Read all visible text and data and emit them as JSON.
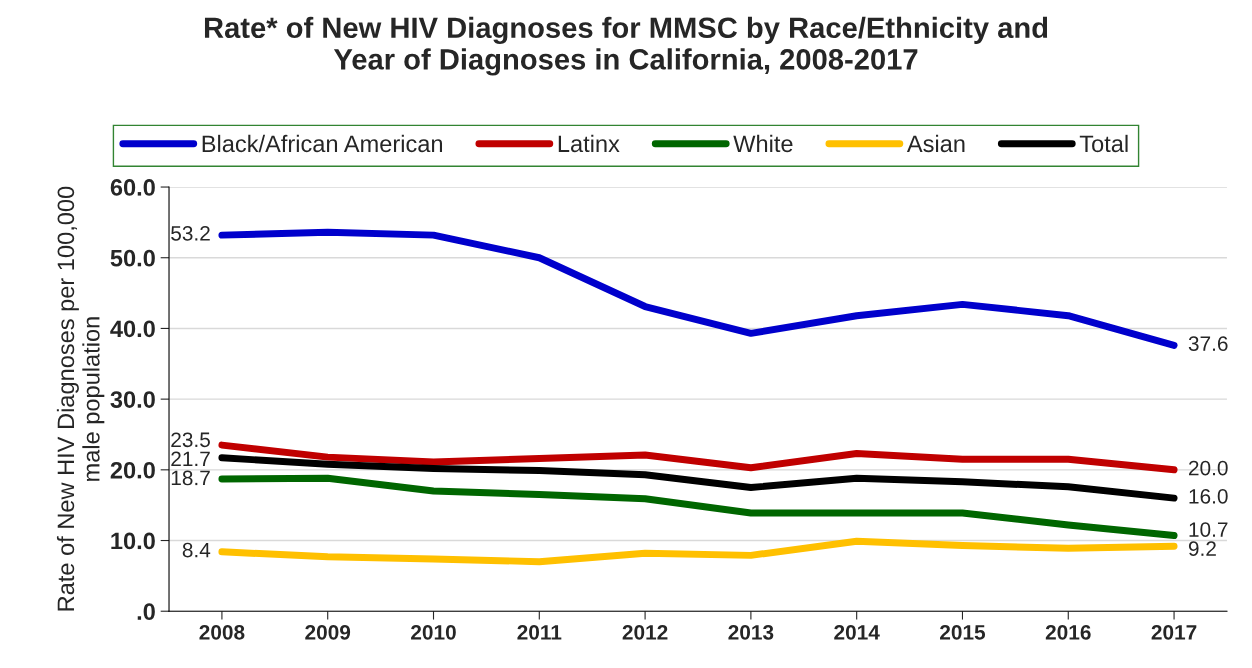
{
  "chart_data": {
    "type": "line",
    "title": "Rate* of New HIV Diagnoses for MMSC by Race/Ethnicity and\nYear of Diagnoses in California, 2008-2017",
    "ylabel": "Rate of New HIV Diagnoses per 100,000\nmale population",
    "categories": [
      "2008",
      "2009",
      "2010",
      "2011",
      "2012",
      "2013",
      "2014",
      "2015",
      "2016",
      "2017"
    ],
    "series": [
      {
        "name": "Black/African American",
        "color": "#0000cc",
        "values": [
          53.2,
          53.6,
          53.2,
          50.0,
          43.1,
          39.3,
          41.8,
          43.4,
          41.8,
          37.6
        ],
        "value_labels": [
          "53.2",
          null,
          null,
          null,
          null,
          null,
          null,
          null,
          null,
          "37.6"
        ]
      },
      {
        "name": "Latinx",
        "color": "#c00000",
        "values": [
          23.5,
          21.8,
          21.1,
          21.6,
          22.1,
          20.3,
          22.3,
          21.5,
          21.5,
          20.0
        ],
        "value_labels": [
          "23.5",
          null,
          null,
          null,
          null,
          null,
          null,
          null,
          null,
          "20.0"
        ]
      },
      {
        "name": "White",
        "color": "#006600",
        "values": [
          18.7,
          18.8,
          17.0,
          16.5,
          15.9,
          13.9,
          13.9,
          13.9,
          12.2,
          10.7
        ],
        "value_labels": [
          "18.7",
          null,
          null,
          null,
          null,
          null,
          null,
          null,
          null,
          "10.7"
        ]
      },
      {
        "name": "Asian",
        "color": "#ffc000",
        "values": [
          8.4,
          7.7,
          7.4,
          7.0,
          8.2,
          7.9,
          9.9,
          9.3,
          8.9,
          9.2
        ],
        "value_labels": [
          "8.4",
          null,
          null,
          null,
          null,
          null,
          null,
          null,
          null,
          "9.2"
        ]
      },
      {
        "name": "Total",
        "color": "#000000",
        "values": [
          21.7,
          20.8,
          20.2,
          19.9,
          19.3,
          17.5,
          18.8,
          18.3,
          17.6,
          16.0
        ],
        "value_labels": [
          "21.7",
          null,
          null,
          null,
          null,
          null,
          null,
          null,
          null,
          "16.0"
        ]
      }
    ],
    "ylim": [
      0,
      60
    ],
    "yticks": [
      {
        "value": 0,
        "label": ".0"
      },
      {
        "value": 10,
        "label": "10.0"
      },
      {
        "value": 20,
        "label": "20.0"
      },
      {
        "value": 30,
        "label": "30.0"
      },
      {
        "value": 40,
        "label": "40.0"
      },
      {
        "value": 50,
        "label": "50.0"
      },
      {
        "value": 60,
        "label": "60.0"
      }
    ],
    "grid": "y",
    "legend": "top",
    "marker": "none",
    "line_style": "solid"
  }
}
